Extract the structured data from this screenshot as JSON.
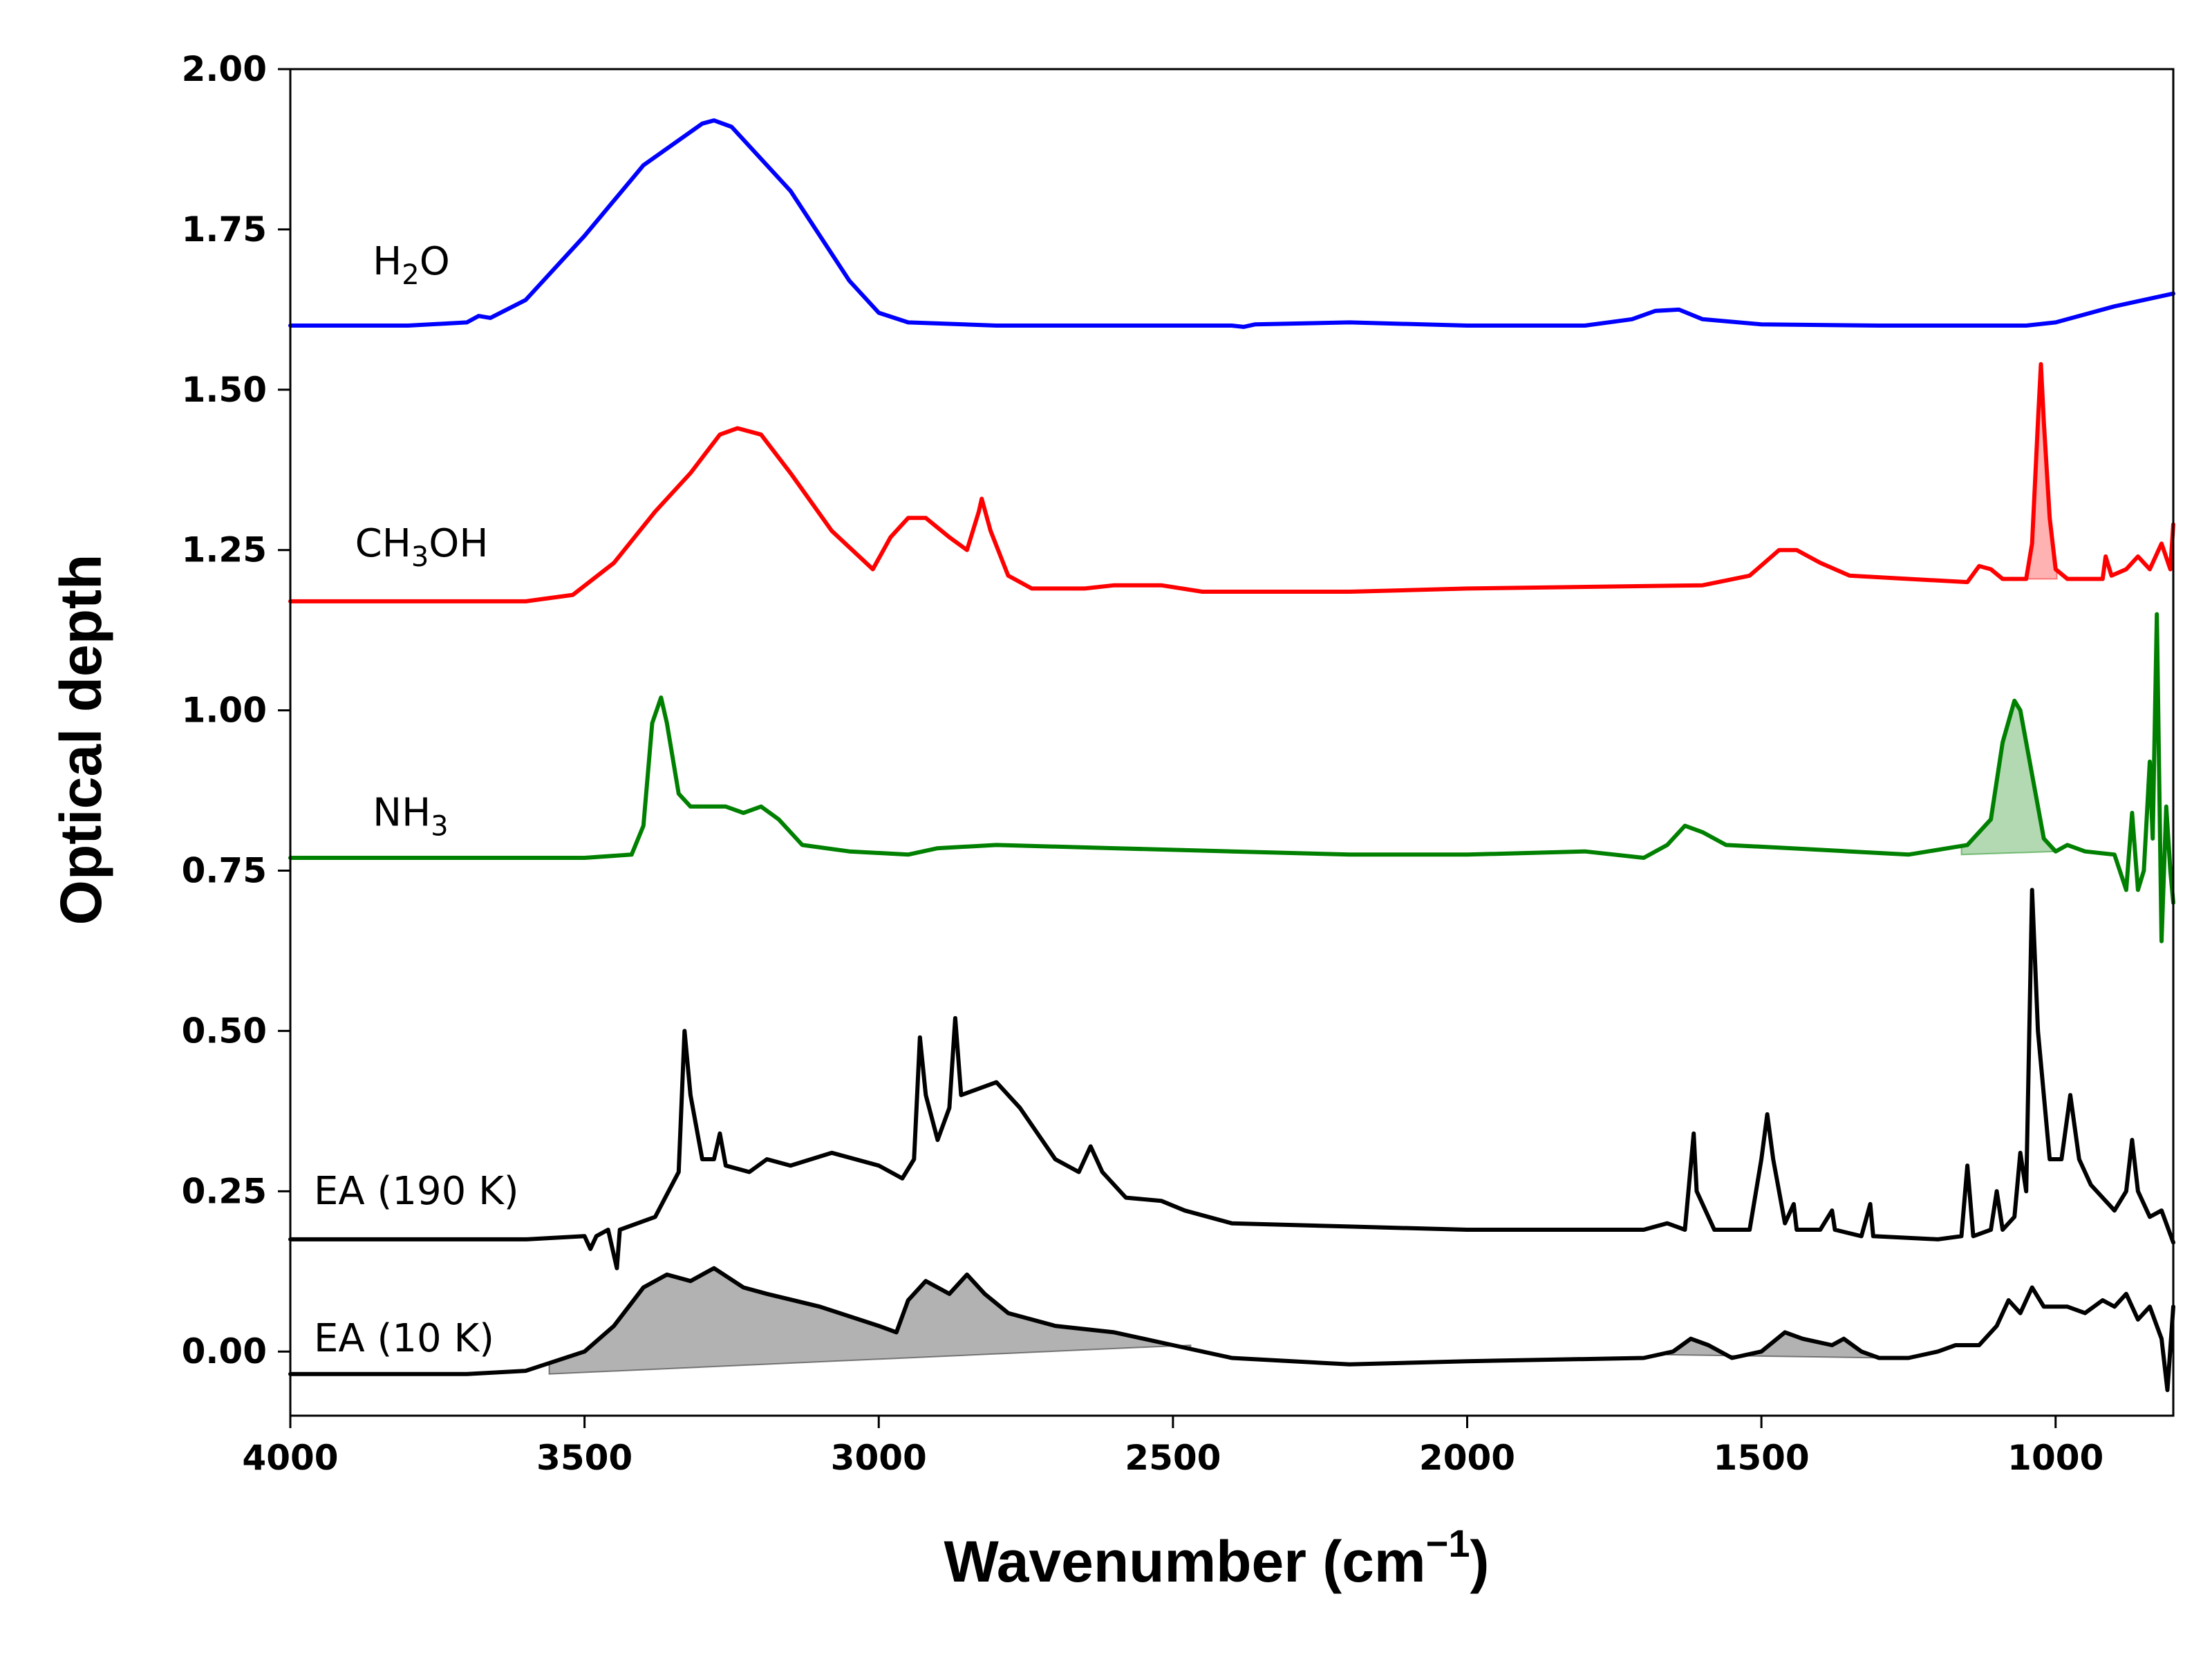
{
  "chart_data": {
    "type": "line",
    "xlabel": "Wavenumber (cm",
    "xlabel_sup": "−1",
    "xlabel_close": ")",
    "ylabel": "Optical depth",
    "xlim": [
      4000,
      800
    ],
    "ylim": [
      -0.1,
      2.0
    ],
    "x_reversed": true,
    "x_ticks": [
      "4000",
      "3500",
      "3000",
      "2500",
      "2000",
      "1500",
      "1000"
    ],
    "y_ticks": [
      "0.00",
      "0.25",
      "0.50",
      "0.75",
      "1.00",
      "1.25",
      "1.50",
      "1.75",
      "2.00"
    ],
    "grid": false,
    "series": [
      {
        "name": "H2O",
        "label_main": "H",
        "label_sub": "2",
        "label_tail": "O",
        "color": "#0000ff",
        "points": [
          [
            4000,
            1.6
          ],
          [
            3800,
            1.6
          ],
          [
            3700,
            1.605
          ],
          [
            3680,
            1.615
          ],
          [
            3660,
            1.612
          ],
          [
            3600,
            1.64
          ],
          [
            3500,
            1.74
          ],
          [
            3400,
            1.85
          ],
          [
            3300,
            1.915
          ],
          [
            3280,
            1.92
          ],
          [
            3250,
            1.91
          ],
          [
            3150,
            1.81
          ],
          [
            3050,
            1.67
          ],
          [
            3000,
            1.62
          ],
          [
            2950,
            1.605
          ],
          [
            2800,
            1.6
          ],
          [
            2400,
            1.6
          ],
          [
            2380,
            1.598
          ],
          [
            2360,
            1.602
          ],
          [
            2200,
            1.605
          ],
          [
            2000,
            1.6
          ],
          [
            1800,
            1.6
          ],
          [
            1720,
            1.61
          ],
          [
            1680,
            1.623
          ],
          [
            1640,
            1.625
          ],
          [
            1600,
            1.61
          ],
          [
            1500,
            1.602
          ],
          [
            1300,
            1.6
          ],
          [
            1050,
            1.6
          ],
          [
            1000,
            1.605
          ],
          [
            900,
            1.63
          ],
          [
            800,
            1.65
          ]
        ]
      },
      {
        "name": "CH3OH",
        "label_main": "CH",
        "label_sub": "3",
        "label_tail": "OH",
        "color": "#ff0000",
        "points": [
          [
            4000,
            1.17
          ],
          [
            3600,
            1.17
          ],
          [
            3520,
            1.18
          ],
          [
            3450,
            1.23
          ],
          [
            3380,
            1.31
          ],
          [
            3320,
            1.37
          ],
          [
            3270,
            1.43
          ],
          [
            3240,
            1.44
          ],
          [
            3200,
            1.43
          ],
          [
            3150,
            1.37
          ],
          [
            3080,
            1.28
          ],
          [
            3010,
            1.22
          ],
          [
            2980,
            1.27
          ],
          [
            2950,
            1.3
          ],
          [
            2920,
            1.3
          ],
          [
            2880,
            1.27
          ],
          [
            2850,
            1.25
          ],
          [
            2830,
            1.31
          ],
          [
            2825,
            1.33
          ],
          [
            2810,
            1.28
          ],
          [
            2780,
            1.21
          ],
          [
            2740,
            1.19
          ],
          [
            2650,
            1.19
          ],
          [
            2600,
            1.195
          ],
          [
            2520,
            1.195
          ],
          [
            2450,
            1.185
          ],
          [
            2300,
            1.185
          ],
          [
            2200,
            1.185
          ],
          [
            2000,
            1.19
          ],
          [
            1600,
            1.195
          ],
          [
            1520,
            1.21
          ],
          [
            1470,
            1.25
          ],
          [
            1440,
            1.25
          ],
          [
            1400,
            1.23
          ],
          [
            1350,
            1.21
          ],
          [
            1250,
            1.205
          ],
          [
            1150,
            1.2
          ],
          [
            1130,
            1.225
          ],
          [
            1110,
            1.22
          ],
          [
            1090,
            1.205
          ],
          [
            1050,
            1.205
          ],
          [
            1040,
            1.26
          ],
          [
            1030,
            1.45
          ],
          [
            1025,
            1.54
          ],
          [
            1020,
            1.45
          ],
          [
            1010,
            1.3
          ],
          [
            1000,
            1.22
          ],
          [
            980,
            1.205
          ],
          [
            920,
            1.205
          ],
          [
            915,
            1.24
          ],
          [
            905,
            1.21
          ],
          [
            880,
            1.22
          ],
          [
            860,
            1.24
          ],
          [
            840,
            1.22
          ],
          [
            820,
            1.26
          ],
          [
            805,
            1.22
          ],
          [
            800,
            1.29
          ]
        ]
      },
      {
        "name": "NH3",
        "label_main": "NH",
        "label_sub": "3",
        "label_tail": "",
        "color": "#008000",
        "points": [
          [
            4000,
            0.77
          ],
          [
            3500,
            0.77
          ],
          [
            3420,
            0.775
          ],
          [
            3400,
            0.82
          ],
          [
            3385,
            0.98
          ],
          [
            3370,
            1.02
          ],
          [
            3360,
            0.98
          ],
          [
            3340,
            0.87
          ],
          [
            3320,
            0.85
          ],
          [
            3260,
            0.85
          ],
          [
            3230,
            0.84
          ],
          [
            3200,
            0.85
          ],
          [
            3170,
            0.83
          ],
          [
            3130,
            0.79
          ],
          [
            3050,
            0.78
          ],
          [
            2950,
            0.775
          ],
          [
            2900,
            0.785
          ],
          [
            2800,
            0.79
          ],
          [
            2600,
            0.785
          ],
          [
            2400,
            0.78
          ],
          [
            2200,
            0.775
          ],
          [
            2000,
            0.775
          ],
          [
            1800,
            0.78
          ],
          [
            1700,
            0.77
          ],
          [
            1660,
            0.79
          ],
          [
            1630,
            0.82
          ],
          [
            1600,
            0.81
          ],
          [
            1560,
            0.79
          ],
          [
            1450,
            0.785
          ],
          [
            1350,
            0.78
          ],
          [
            1250,
            0.775
          ],
          [
            1150,
            0.79
          ],
          [
            1110,
            0.83
          ],
          [
            1090,
            0.95
          ],
          [
            1070,
            1.015
          ],
          [
            1060,
            1.0
          ],
          [
            1040,
            0.9
          ],
          [
            1020,
            0.8
          ],
          [
            1000,
            0.78
          ],
          [
            980,
            0.79
          ],
          [
            950,
            0.78
          ],
          [
            900,
            0.775
          ],
          [
            880,
            0.72
          ],
          [
            870,
            0.84
          ],
          [
            860,
            0.72
          ],
          [
            850,
            0.75
          ],
          [
            840,
            0.92
          ],
          [
            835,
            0.8
          ],
          [
            828,
            1.15
          ],
          [
            820,
            0.64
          ],
          [
            812,
            0.85
          ],
          [
            805,
            0.75
          ],
          [
            800,
            0.7
          ]
        ]
      },
      {
        "name": "EA (190 K)",
        "label_main": "EA (190 K)",
        "label_sub": "",
        "label_tail": "",
        "color": "#000000",
        "points": [
          [
            4000,
            0.175
          ],
          [
            3600,
            0.175
          ],
          [
            3500,
            0.18
          ],
          [
            3490,
            0.16
          ],
          [
            3480,
            0.18
          ],
          [
            3460,
            0.19
          ],
          [
            3445,
            0.13
          ],
          [
            3440,
            0.19
          ],
          [
            3380,
            0.21
          ],
          [
            3340,
            0.28
          ],
          [
            3330,
            0.5
          ],
          [
            3320,
            0.4
          ],
          [
            3300,
            0.3
          ],
          [
            3280,
            0.3
          ],
          [
            3270,
            0.34
          ],
          [
            3260,
            0.29
          ],
          [
            3220,
            0.28
          ],
          [
            3190,
            0.3
          ],
          [
            3150,
            0.29
          ],
          [
            3080,
            0.31
          ],
          [
            3000,
            0.29
          ],
          [
            2960,
            0.27
          ],
          [
            2940,
            0.3
          ],
          [
            2930,
            0.49
          ],
          [
            2920,
            0.4
          ],
          [
            2900,
            0.33
          ],
          [
            2880,
            0.38
          ],
          [
            2870,
            0.52
          ],
          [
            2860,
            0.4
          ],
          [
            2800,
            0.42
          ],
          [
            2760,
            0.38
          ],
          [
            2700,
            0.3
          ],
          [
            2660,
            0.28
          ],
          [
            2640,
            0.32
          ],
          [
            2620,
            0.28
          ],
          [
            2580,
            0.24
          ],
          [
            2520,
            0.235
          ],
          [
            2480,
            0.22
          ],
          [
            2400,
            0.2
          ],
          [
            2200,
            0.195
          ],
          [
            2000,
            0.19
          ],
          [
            1800,
            0.19
          ],
          [
            1700,
            0.19
          ],
          [
            1660,
            0.2
          ],
          [
            1630,
            0.19
          ],
          [
            1615,
            0.34
          ],
          [
            1610,
            0.25
          ],
          [
            1580,
            0.19
          ],
          [
            1520,
            0.19
          ],
          [
            1500,
            0.3
          ],
          [
            1490,
            0.37
          ],
          [
            1480,
            0.3
          ],
          [
            1460,
            0.2
          ],
          [
            1445,
            0.23
          ],
          [
            1440,
            0.19
          ],
          [
            1400,
            0.19
          ],
          [
            1380,
            0.22
          ],
          [
            1375,
            0.19
          ],
          [
            1330,
            0.18
          ],
          [
            1315,
            0.23
          ],
          [
            1310,
            0.18
          ],
          [
            1200,
            0.175
          ],
          [
            1160,
            0.18
          ],
          [
            1150,
            0.29
          ],
          [
            1140,
            0.18
          ],
          [
            1110,
            0.19
          ],
          [
            1100,
            0.25
          ],
          [
            1090,
            0.19
          ],
          [
            1070,
            0.21
          ],
          [
            1060,
            0.31
          ],
          [
            1050,
            0.25
          ],
          [
            1040,
            0.72
          ],
          [
            1030,
            0.5
          ],
          [
            1010,
            0.3
          ],
          [
            990,
            0.3
          ],
          [
            975,
            0.4
          ],
          [
            960,
            0.3
          ],
          [
            940,
            0.26
          ],
          [
            900,
            0.22
          ],
          [
            880,
            0.25
          ],
          [
            870,
            0.33
          ],
          [
            860,
            0.25
          ],
          [
            840,
            0.21
          ],
          [
            820,
            0.22
          ],
          [
            800,
            0.17
          ]
        ]
      },
      {
        "name": "EA (10 K)",
        "label_main": "EA (10 K)",
        "label_sub": "",
        "label_tail": "",
        "color": "#000000",
        "points": [
          [
            4000,
            -0.035
          ],
          [
            3700,
            -0.035
          ],
          [
            3600,
            -0.03
          ],
          [
            3500,
            0.0
          ],
          [
            3450,
            0.04
          ],
          [
            3400,
            0.1
          ],
          [
            3360,
            0.12
          ],
          [
            3320,
            0.11
          ],
          [
            3280,
            0.13
          ],
          [
            3230,
            0.1
          ],
          [
            3190,
            0.09
          ],
          [
            3100,
            0.07
          ],
          [
            3000,
            0.04
          ],
          [
            2970,
            0.03
          ],
          [
            2950,
            0.08
          ],
          [
            2920,
            0.11
          ],
          [
            2880,
            0.09
          ],
          [
            2850,
            0.12
          ],
          [
            2820,
            0.09
          ],
          [
            2780,
            0.06
          ],
          [
            2700,
            0.04
          ],
          [
            2600,
            0.03
          ],
          [
            2500,
            0.01
          ],
          [
            2400,
            -0.01
          ],
          [
            2200,
            -0.02
          ],
          [
            2000,
            -0.015
          ],
          [
            1700,
            -0.01
          ],
          [
            1650,
            0.0
          ],
          [
            1620,
            0.02
          ],
          [
            1590,
            0.01
          ],
          [
            1550,
            -0.01
          ],
          [
            1500,
            0.0
          ],
          [
            1460,
            0.03
          ],
          [
            1430,
            0.02
          ],
          [
            1380,
            0.01
          ],
          [
            1360,
            0.02
          ],
          [
            1330,
            0.0
          ],
          [
            1300,
            -0.01
          ],
          [
            1250,
            -0.01
          ],
          [
            1200,
            0.0
          ],
          [
            1170,
            0.01
          ],
          [
            1130,
            0.01
          ],
          [
            1100,
            0.04
          ],
          [
            1080,
            0.08
          ],
          [
            1060,
            0.06
          ],
          [
            1040,
            0.1
          ],
          [
            1020,
            0.07
          ],
          [
            980,
            0.07
          ],
          [
            950,
            0.06
          ],
          [
            920,
            0.08
          ],
          [
            900,
            0.07
          ],
          [
            880,
            0.09
          ],
          [
            860,
            0.05
          ],
          [
            840,
            0.07
          ],
          [
            820,
            0.02
          ],
          [
            810,
            -0.06
          ],
          [
            800,
            0.07
          ]
        ]
      }
    ],
    "shaded_regions": [
      {
        "series": "CH3OH",
        "color": "#ff0000",
        "opacity": 0.3,
        "from": 1050,
        "to": 998,
        "baseline": [
          1.205,
          1.205
        ]
      },
      {
        "series": "NH3",
        "color": "#008000",
        "opacity": 0.3,
        "from": 1160,
        "to": 995,
        "baseline": [
          0.775,
          0.78
        ]
      },
      {
        "series": "EA (10 K)",
        "color": "#000000",
        "opacity": 0.3,
        "from": 3560,
        "to": 2470,
        "baseline": [
          -0.035,
          0.01
        ]
      },
      {
        "series": "EA (10 K)",
        "color": "#000000",
        "opacity": 0.3,
        "from": 1660,
        "to": 1290,
        "baseline": [
          -0.005,
          -0.01
        ]
      }
    ]
  }
}
